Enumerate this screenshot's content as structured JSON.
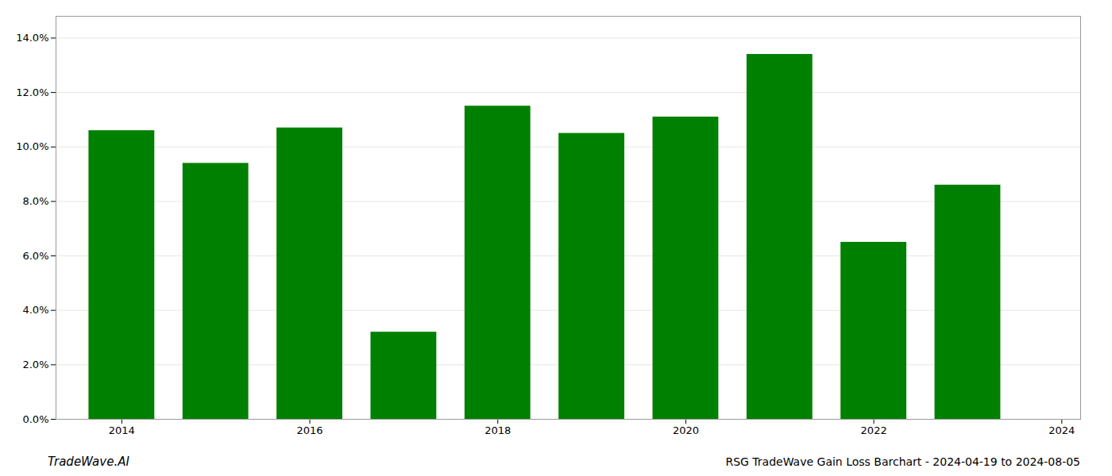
{
  "chart_data": {
    "type": "bar",
    "title": "RSG TradeWave Gain Loss Barchart - 2024-04-19 to 2024-08-05",
    "annotations": [
      "TradeWave.AI"
    ],
    "x": [
      2014,
      2015,
      2016,
      2017,
      2018,
      2019,
      2020,
      2021,
      2022,
      2023
    ],
    "values": [
      0.106,
      0.094,
      0.107,
      0.032,
      0.115,
      0.105,
      0.111,
      0.134,
      0.065,
      0.086
    ],
    "color": "#008000",
    "xlim": [
      2013.3,
      2024.2
    ],
    "xticks": [
      2014,
      2016,
      2018,
      2020,
      2022,
      2024
    ],
    "ylim": [
      0,
      0.148
    ],
    "yticks": [
      {
        "value": 0.0,
        "label": "0.0%"
      },
      {
        "value": 0.02,
        "label": "2.0%"
      },
      {
        "value": 0.04,
        "label": "4.0%"
      },
      {
        "value": 0.06,
        "label": "6.0%"
      },
      {
        "value": 0.08,
        "label": "8.0%"
      },
      {
        "value": 0.1,
        "label": "10.0%"
      },
      {
        "value": 0.12,
        "label": "12.0%"
      },
      {
        "value": 0.14,
        "label": "14.0%"
      }
    ],
    "grid": true
  }
}
